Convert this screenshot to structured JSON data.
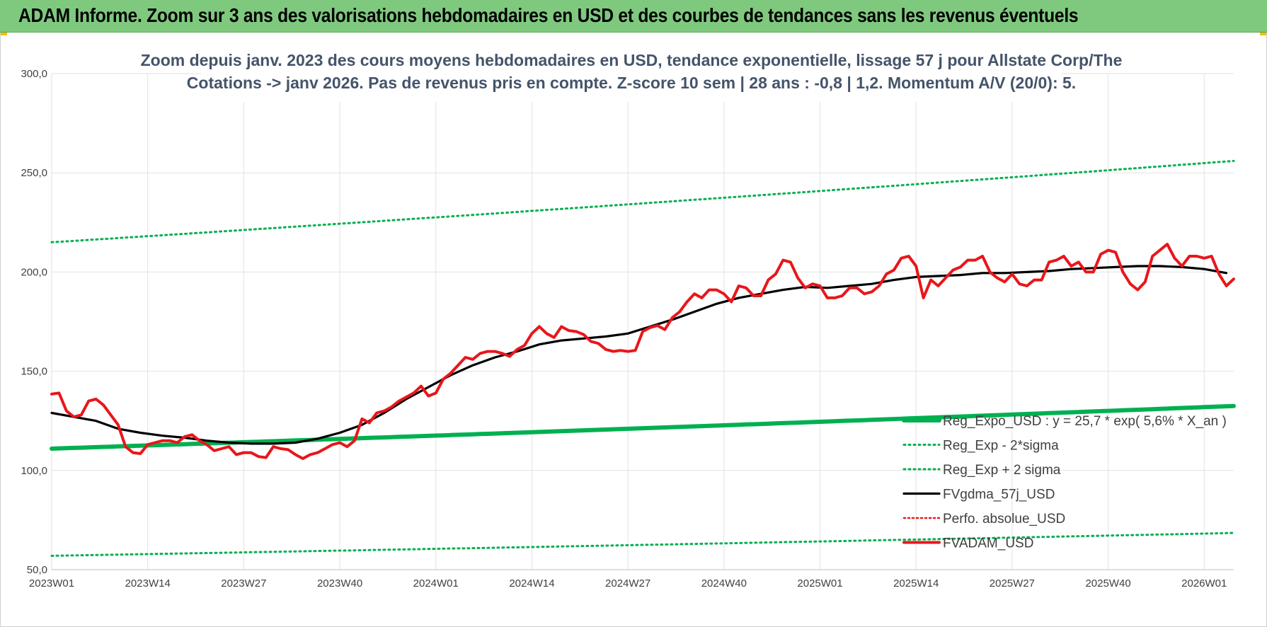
{
  "banner": {
    "title": "ADAM Informe. Zoom sur 3 ans des valorisations hebdomadaires en USD et des courbes de tendances sans les revenus éventuels"
  },
  "colors": {
    "banner_bg": "#7fc97f",
    "price": "#e8161b",
    "smooth": "#000000",
    "trend": "#00b050",
    "band": "#00b050",
    "perfo": "#e8161b",
    "grid": "#e2e2e2",
    "subtitle": "#44546a"
  },
  "chart_data": {
    "type": "line",
    "title_lines": [
      "Zoom depuis janv. 2023 des cours moyens hebdomadaires en USD, tendance exponentielle, lissage 57 j pour Allstate Corp/The",
      "Cotations -> janv 2026. Pas de revenus pris en compte. Z-score 10 sem | 28 ans : -0,8 | 1,2. Momentum A/V (20/0): 5."
    ],
    "ylim": [
      50,
      300
    ],
    "yticks": [
      "50,0",
      "100,0",
      "150,0",
      "200,0",
      "250,0",
      "300,0"
    ],
    "ytick_values": [
      50,
      100,
      150,
      200,
      250,
      300
    ],
    "x_ticks": [
      {
        "week": 0,
        "label": "2023W01"
      },
      {
        "week": 13,
        "label": "2023W14"
      },
      {
        "week": 26,
        "label": "2023W27"
      },
      {
        "week": 39,
        "label": "2023W40"
      },
      {
        "week": 52,
        "label": "2024W01"
      },
      {
        "week": 65,
        "label": "2024W14"
      },
      {
        "week": 78,
        "label": "2024W27"
      },
      {
        "week": 91,
        "label": "2024W40"
      },
      {
        "week": 104,
        "label": "2025W01"
      },
      {
        "week": 117,
        "label": "2025W14"
      },
      {
        "week": 130,
        "label": "2025W27"
      },
      {
        "week": 143,
        "label": "2025W40"
      },
      {
        "week": 156,
        "label": "2026W01"
      }
    ],
    "x_max_week": 160,
    "grid": true,
    "legend_position": "bottom-right",
    "series": [
      {
        "name": "Reg_Expo_USD : y = 25,7 * exp( 5,6% *  X_an )",
        "style": "trend",
        "anchors": [
          [
            0,
            111
          ],
          [
            160,
            132.5
          ]
        ]
      },
      {
        "name": "Reg_Exp - 2*sigma",
        "style": "dotted-green",
        "anchors": [
          [
            0,
            57
          ],
          [
            160,
            68.5
          ]
        ]
      },
      {
        "name": "Reg_Exp + 2 sigma",
        "style": "dotted-green",
        "anchors": [
          [
            0,
            215
          ],
          [
            160,
            256
          ]
        ]
      },
      {
        "name": "FVgdma_57j_USD",
        "style": "smooth",
        "anchors": [
          [
            0,
            129
          ],
          [
            3,
            127
          ],
          [
            6,
            125
          ],
          [
            9,
            121
          ],
          [
            12,
            119
          ],
          [
            15,
            117.5
          ],
          [
            18,
            116.5
          ],
          [
            21,
            115
          ],
          [
            24,
            114
          ],
          [
            27,
            113.5
          ],
          [
            30,
            113.5
          ],
          [
            33,
            114
          ],
          [
            36,
            116
          ],
          [
            39,
            119
          ],
          [
            42,
            123
          ],
          [
            45,
            129
          ],
          [
            48,
            136
          ],
          [
            51,
            142
          ],
          [
            54,
            148
          ],
          [
            57,
            153
          ],
          [
            60,
            157
          ],
          [
            63,
            160
          ],
          [
            66,
            163.5
          ],
          [
            69,
            165.5
          ],
          [
            72,
            166.5
          ],
          [
            75,
            167.5
          ],
          [
            78,
            169
          ],
          [
            81,
            172.5
          ],
          [
            84,
            176
          ],
          [
            87,
            180
          ],
          [
            90,
            184
          ],
          [
            93,
            187
          ],
          [
            96,
            189
          ],
          [
            99,
            191
          ],
          [
            102,
            192.5
          ],
          [
            105,
            192
          ],
          [
            108,
            193
          ],
          [
            111,
            194
          ],
          [
            114,
            196
          ],
          [
            117,
            197.5
          ],
          [
            120,
            198
          ],
          [
            123,
            198.5
          ],
          [
            126,
            199.5
          ],
          [
            129,
            199.5
          ],
          [
            132,
            200
          ],
          [
            135,
            200.5
          ],
          [
            138,
            201.5
          ],
          [
            141,
            202
          ],
          [
            144,
            202.5
          ],
          [
            147,
            203
          ],
          [
            150,
            203
          ],
          [
            153,
            202.5
          ],
          [
            156,
            201.5
          ],
          [
            159,
            199.5
          ]
        ]
      },
      {
        "name": "Perfo. absolue_USD",
        "style": "dotted-red",
        "anchors": []
      },
      {
        "name": "FVADAM_USD",
        "style": "price",
        "anchors": [
          [
            0,
            138.5
          ],
          [
            1,
            139
          ],
          [
            2,
            130
          ],
          [
            3,
            127
          ],
          [
            4,
            128
          ],
          [
            5,
            135
          ],
          [
            6,
            136
          ],
          [
            7,
            133
          ],
          [
            8,
            128
          ],
          [
            9,
            123
          ],
          [
            10,
            112
          ],
          [
            11,
            109
          ],
          [
            12,
            108.5
          ],
          [
            13,
            113
          ],
          [
            14,
            114
          ],
          [
            15,
            115
          ],
          [
            16,
            115
          ],
          [
            17,
            114
          ],
          [
            18,
            117
          ],
          [
            19,
            118
          ],
          [
            20,
            115
          ],
          [
            21,
            113
          ],
          [
            22,
            110
          ],
          [
            23,
            111
          ],
          [
            24,
            112
          ],
          [
            25,
            108
          ],
          [
            26,
            109
          ],
          [
            27,
            109
          ],
          [
            28,
            107
          ],
          [
            29,
            106.5
          ],
          [
            30,
            112
          ],
          [
            31,
            111
          ],
          [
            32,
            110.5
          ],
          [
            33,
            108
          ],
          [
            34,
            106
          ],
          [
            35,
            108
          ],
          [
            36,
            109
          ],
          [
            37,
            111
          ],
          [
            38,
            113
          ],
          [
            39,
            114
          ],
          [
            40,
            112
          ],
          [
            41,
            115
          ],
          [
            42,
            126
          ],
          [
            43,
            124
          ],
          [
            44,
            129
          ],
          [
            45,
            130
          ],
          [
            46,
            132
          ],
          [
            47,
            135
          ],
          [
            48,
            137
          ],
          [
            49,
            139
          ],
          [
            50,
            142.5
          ],
          [
            51,
            137.5
          ],
          [
            52,
            139
          ],
          [
            53,
            146
          ],
          [
            54,
            149
          ],
          [
            55,
            153
          ],
          [
            56,
            157
          ],
          [
            57,
            156
          ],
          [
            58,
            159
          ],
          [
            59,
            160
          ],
          [
            60,
            160
          ],
          [
            61,
            159
          ],
          [
            62,
            157.5
          ],
          [
            63,
            161
          ],
          [
            64,
            163
          ],
          [
            65,
            169
          ],
          [
            66,
            172.5
          ],
          [
            67,
            169
          ],
          [
            68,
            167
          ],
          [
            69,
            172.5
          ],
          [
            70,
            170.5
          ],
          [
            71,
            170
          ],
          [
            72,
            168.5
          ],
          [
            73,
            165
          ],
          [
            74,
            164
          ],
          [
            75,
            161
          ],
          [
            76,
            160
          ],
          [
            77,
            160.5
          ],
          [
            78,
            160
          ],
          [
            79,
            160.5
          ],
          [
            80,
            170
          ],
          [
            81,
            172
          ],
          [
            82,
            173
          ],
          [
            83,
            171
          ],
          [
            84,
            177
          ],
          [
            85,
            180
          ],
          [
            86,
            185
          ],
          [
            87,
            189
          ],
          [
            88,
            187
          ],
          [
            89,
            191
          ],
          [
            90,
            191
          ],
          [
            91,
            189
          ],
          [
            92,
            185
          ],
          [
            93,
            193
          ],
          [
            94,
            192
          ],
          [
            95,
            188
          ],
          [
            96,
            188
          ],
          [
            97,
            196
          ],
          [
            98,
            199
          ],
          [
            99,
            206
          ],
          [
            100,
            205
          ],
          [
            101,
            197
          ],
          [
            102,
            192
          ],
          [
            103,
            194
          ],
          [
            104,
            193
          ],
          [
            105,
            187
          ],
          [
            106,
            187
          ],
          [
            107,
            188
          ],
          [
            108,
            192
          ],
          [
            109,
            192
          ],
          [
            110,
            189
          ],
          [
            111,
            190
          ],
          [
            112,
            193
          ],
          [
            113,
            199
          ],
          [
            114,
            201
          ],
          [
            115,
            207
          ],
          [
            116,
            208
          ],
          [
            117,
            203
          ],
          [
            118,
            187
          ],
          [
            119,
            196
          ],
          [
            120,
            193
          ],
          [
            121,
            197
          ],
          [
            122,
            201
          ],
          [
            123,
            202.5
          ],
          [
            124,
            206
          ],
          [
            125,
            206
          ],
          [
            126,
            208
          ],
          [
            127,
            200
          ],
          [
            128,
            197
          ],
          [
            129,
            195
          ],
          [
            130,
            199
          ],
          [
            131,
            194
          ],
          [
            132,
            193
          ],
          [
            133,
            196
          ],
          [
            134,
            196
          ],
          [
            135,
            205
          ],
          [
            136,
            206
          ],
          [
            137,
            208
          ],
          [
            138,
            203
          ],
          [
            139,
            205
          ],
          [
            140,
            200
          ],
          [
            141,
            200
          ],
          [
            142,
            209
          ],
          [
            143,
            211
          ],
          [
            144,
            210
          ],
          [
            145,
            200
          ],
          [
            146,
            194
          ],
          [
            147,
            191
          ],
          [
            148,
            195
          ],
          [
            149,
            208
          ],
          [
            150,
            211
          ],
          [
            151,
            214
          ],
          [
            152,
            207
          ],
          [
            153,
            203
          ],
          [
            154,
            208
          ],
          [
            155,
            208
          ],
          [
            156,
            207
          ],
          [
            157,
            208
          ],
          [
            158,
            199
          ],
          [
            159,
            193
          ],
          [
            160,
            196.5
          ]
        ]
      }
    ]
  }
}
